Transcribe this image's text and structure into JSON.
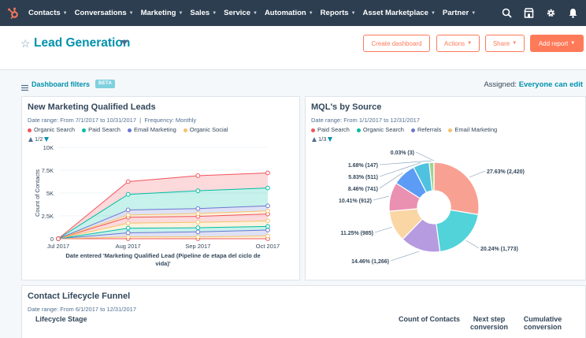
{
  "nav": {
    "items": [
      {
        "label": "Contacts"
      },
      {
        "label": "Conversations"
      },
      {
        "label": "Marketing"
      },
      {
        "label": "Sales"
      },
      {
        "label": "Service"
      },
      {
        "label": "Automation"
      },
      {
        "label": "Reports"
      },
      {
        "label": "Asset Marketplace"
      },
      {
        "label": "Partner"
      }
    ]
  },
  "header": {
    "title": "Lead Generation",
    "create_dashboard": "Create dashboard",
    "actions": "Actions",
    "share": "Share",
    "add_report": "Add report"
  },
  "filters": {
    "label": "Dashboard filters",
    "beta": "BETA",
    "assigned_label": "Assigned:",
    "assigned_value": "Everyone can edit"
  },
  "mql_card": {
    "title": "New Marketing Qualified Leads",
    "date_range": "Date range: From 7/1/2017 to 10/31/2017",
    "frequency": "Frequency: Monthly",
    "pager": "1/2"
  },
  "source_card": {
    "title": "MQL's by Source",
    "date_range": "Date range: From 1/1/2017 to 12/31/2017",
    "pager": "1/3"
  },
  "funnel_card": {
    "title": "Contact Lifecycle Funnel",
    "date_range": "Date range: From 6/1/2017 to 12/31/2017",
    "col_stage": "Lifecycle Stage",
    "col_count": "Count of Contacts",
    "col_next": "Next step conversion",
    "col_cumulative": "Cumulative conversion"
  },
  "colors": {
    "accent": "#0091ae",
    "orange": "#ff7a59",
    "nav_bg": "#2d3e50"
  },
  "chart_data": [
    {
      "type": "area",
      "title": "New Marketing Qualified Leads",
      "xlabel": "Date entered 'Marketing Qualified Lead (Pipeline de etapa del ciclo de vida)'",
      "ylabel": "Count of Contacts",
      "categories": [
        "Jul 2017",
        "Aug 2017",
        "Sep 2017",
        "Oct 2017"
      ],
      "ylim": [
        0,
        10000
      ],
      "yticks": [
        "0",
        "2.5K",
        "5K",
        "7.5K",
        "10K"
      ],
      "stacked": true,
      "series": [
        {
          "name": "",
          "values": [
            0,
            0,
            0,
            0
          ],
          "color": "#f2545b"
        },
        {
          "name": "",
          "values": [
            0,
            200,
            200,
            300
          ],
          "color": "#f5c26b"
        },
        {
          "name": "",
          "values": [
            0,
            450,
            550,
            650
          ],
          "color": "#6a78d1"
        },
        {
          "name": "",
          "values": [
            0,
            500,
            450,
            400
          ],
          "color": "#00bda5"
        },
        {
          "name": "",
          "values": [
            0,
            550,
            600,
            600
          ],
          "color": "#f5c26b"
        },
        {
          "name": "",
          "values": [
            0,
            650,
            650,
            750
          ],
          "color": "#f2545b"
        },
        {
          "name": "Organic Social",
          "values": [
            0,
            250,
            300,
            350
          ],
          "color": "#f5c26b"
        },
        {
          "name": "Email Marketing",
          "values": [
            0,
            550,
            550,
            550
          ],
          "color": "#6a78d1"
        },
        {
          "name": "Paid Search",
          "values": [
            0,
            1700,
            1950,
            1950
          ],
          "color": "#00bda5"
        },
        {
          "name": "Organic Search",
          "values": [
            0,
            1400,
            1650,
            1650
          ],
          "color": "#f2545b"
        }
      ],
      "legend": [
        {
          "name": "Organic Search",
          "color": "#f2545b"
        },
        {
          "name": "Paid Search",
          "color": "#00bda5"
        },
        {
          "name": "Email Marketing",
          "color": "#6a78d1"
        },
        {
          "name": "Organic Social",
          "color": "#f5c26b"
        }
      ]
    },
    {
      "type": "pie",
      "title": "MQL's by Source",
      "donut": true,
      "legend": [
        {
          "name": "Paid Search",
          "color": "#f2545b"
        },
        {
          "name": "Organic Search",
          "color": "#00bda5"
        },
        {
          "name": "Referrals",
          "color": "#6a78d1"
        },
        {
          "name": "Email Marketing",
          "color": "#f5c26b"
        }
      ],
      "slices": [
        {
          "label": "27.63% (2,420)",
          "value": 27.63,
          "color": "#f8a193"
        },
        {
          "label": "20.24% (1,773)",
          "value": 20.24,
          "color": "#51d3d9"
        },
        {
          "label": "14.46% (1,266)",
          "value": 14.46,
          "color": "#b69be0"
        },
        {
          "label": "11.25% (985)",
          "value": 11.25,
          "color": "#fad6a5"
        },
        {
          "label": "10.41% (912)",
          "value": 10.41,
          "color": "#ea90b1"
        },
        {
          "label": "8.46% (741)",
          "value": 8.46,
          "color": "#5c9cf5"
        },
        {
          "label": "5.83% (511)",
          "value": 5.83,
          "color": "#4fc2e0"
        },
        {
          "label": "1.68% (147)",
          "value": 1.68,
          "color": "#a2d28f"
        },
        {
          "label": "0.03% (3)",
          "value": 0.03,
          "color": "#f2545b"
        }
      ]
    }
  ]
}
